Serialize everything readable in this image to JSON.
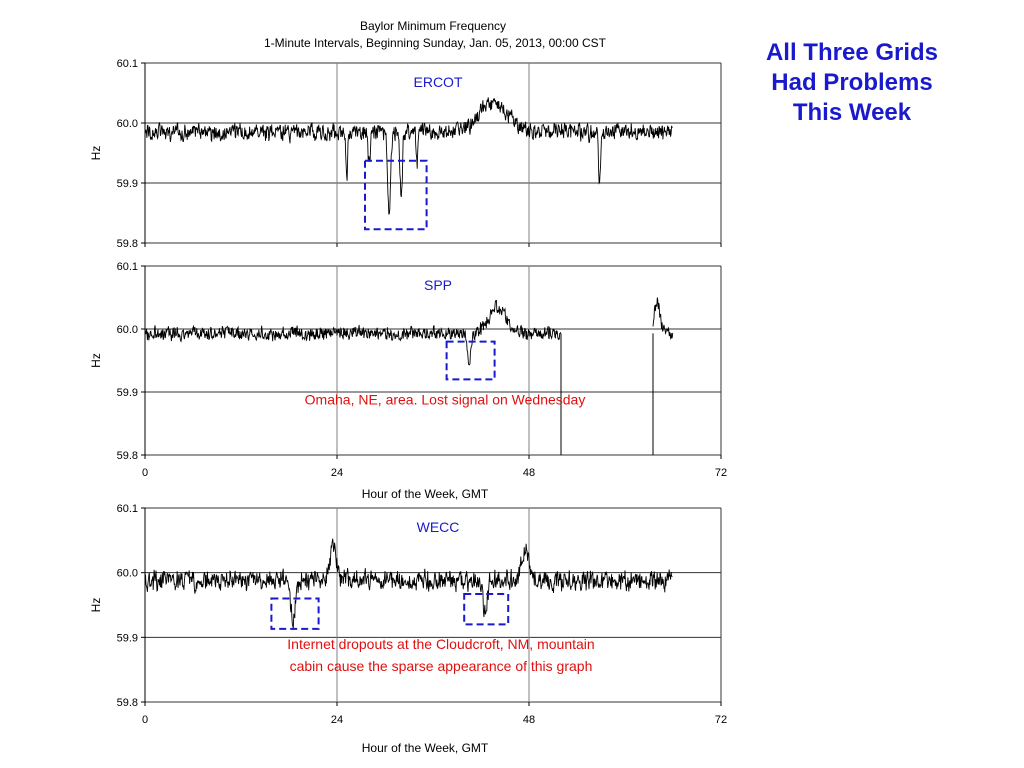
{
  "slide": {
    "title_lines": [
      "All Three Grids",
      "Had Problems",
      "This Week"
    ]
  },
  "colors": {
    "title": "#1a1acc",
    "highlight_box": "#1a1acc",
    "annotation": "#e01010",
    "trace": "#000000",
    "grid": "#808080"
  },
  "chart_data": [
    {
      "type": "line",
      "title": "Baylor Minimum Frequency",
      "subtitle": "1-Minute Intervals, Beginning Sunday, Jan. 05, 2013, 00:00 CST",
      "panel_label": "ERCOT",
      "xlabel": "",
      "ylabel": "Hz",
      "xlim": [
        0,
        72
      ],
      "ylim": [
        59.8,
        60.1
      ],
      "x_tick_labels": [],
      "x_grid": [
        24,
        48
      ],
      "y_tick_labels": [
        "60.1",
        "60.0",
        "59.9",
        "59.8"
      ],
      "y_ticks": [
        60.1,
        60.0,
        59.9,
        59.8
      ],
      "grid": true,
      "series": [
        {
          "segments": [
            [
              0,
              66
            ]
          ],
          "mean": 59.985,
          "noise": 0.018,
          "extras": [
            {
              "x": 43.5,
              "y": 60.035,
              "w": 2.5
            },
            {
              "x": 25.2,
              "y": 59.9,
              "w": 0.15
            },
            {
              "x": 30.5,
              "y": 59.845,
              "w": 0.25
            },
            {
              "x": 32.0,
              "y": 59.87,
              "w": 0.2
            },
            {
              "x": 28.0,
              "y": 59.93,
              "w": 0.2
            },
            {
              "x": 56.8,
              "y": 59.89,
              "w": 0.15
            },
            {
              "x": 34.0,
              "y": 59.93,
              "w": 0.15
            }
          ]
        }
      ],
      "highlight_boxes": [
        {
          "x0": 27.5,
          "x1": 35.2,
          "y0": 59.937,
          "y1": 59.823
        }
      ],
      "annotations": []
    },
    {
      "type": "line",
      "title": "",
      "panel_label": "SPP",
      "xlabel": "Hour of the Week, GMT",
      "ylabel": "Hz",
      "xlim": [
        0,
        72
      ],
      "ylim": [
        59.8,
        60.1
      ],
      "x_tick_labels": [
        "0",
        "24",
        "48",
        "72"
      ],
      "x_ticks": [
        0,
        24,
        48,
        72
      ],
      "x_grid": [
        24,
        48
      ],
      "y_tick_labels": [
        "60.1",
        "60.0",
        "59.9",
        "59.8"
      ],
      "y_ticks": [
        60.1,
        60.0,
        59.9,
        59.8
      ],
      "grid": true,
      "series": [
        {
          "segments": [
            [
              0,
              52
            ],
            [
              63.5,
              66
            ]
          ],
          "mean": 59.993,
          "noise": 0.014,
          "extras": [
            {
              "x": 40.5,
              "y": 59.945,
              "w": 0.3
            },
            {
              "x": 44.0,
              "y": 60.035,
              "w": 1.5
            },
            {
              "x": 64.0,
              "y": 60.04,
              "w": 0.5
            }
          ],
          "gap_drops": [
            52,
            63.5
          ]
        }
      ],
      "highlight_boxes": [
        {
          "x0": 37.7,
          "x1": 43.7,
          "y0": 59.98,
          "y1": 59.92
        }
      ],
      "annotations": [
        {
          "text": "Omaha, NE, area.  Lost signal on Wednesday",
          "x": 37.5,
          "y": 59.88
        }
      ]
    },
    {
      "type": "line",
      "title": "",
      "panel_label": "WECC",
      "xlabel": "Hour of the Week, GMT",
      "ylabel": "Hz",
      "xlim": [
        0,
        72
      ],
      "ylim": [
        59.8,
        60.1
      ],
      "x_tick_labels": [
        "0",
        "24",
        "48",
        "72"
      ],
      "x_ticks": [
        0,
        24,
        48,
        72
      ],
      "x_grid": [
        24,
        48
      ],
      "y_tick_labels": [
        "60.1",
        "60.0",
        "59.9",
        "59.8"
      ],
      "y_ticks": [
        60.1,
        60.0,
        59.9,
        59.8
      ],
      "grid": true,
      "series": [
        {
          "segments": [
            [
              0,
              66
            ]
          ],
          "mean": 59.988,
          "noise": 0.02,
          "extras": [
            {
              "x": 23.5,
              "y": 60.04,
              "w": 0.6
            },
            {
              "x": 47.5,
              "y": 60.04,
              "w": 0.6
            },
            {
              "x": 18.5,
              "y": 59.925,
              "w": 0.4
            },
            {
              "x": 42.5,
              "y": 59.94,
              "w": 0.4
            }
          ]
        }
      ],
      "highlight_boxes": [
        {
          "x0": 15.8,
          "x1": 21.7,
          "y0": 59.96,
          "y1": 59.913
        },
        {
          "x0": 39.9,
          "x1": 45.4,
          "y0": 59.967,
          "y1": 59.92
        }
      ],
      "annotations": [
        {
          "text": "Internet dropouts at the Cloudcroft, NM, mountain",
          "x": 37,
          "y": 59.882
        },
        {
          "text": "cabin cause the sparse appearance of this graph",
          "x": 37,
          "y": 59.848
        }
      ]
    }
  ]
}
